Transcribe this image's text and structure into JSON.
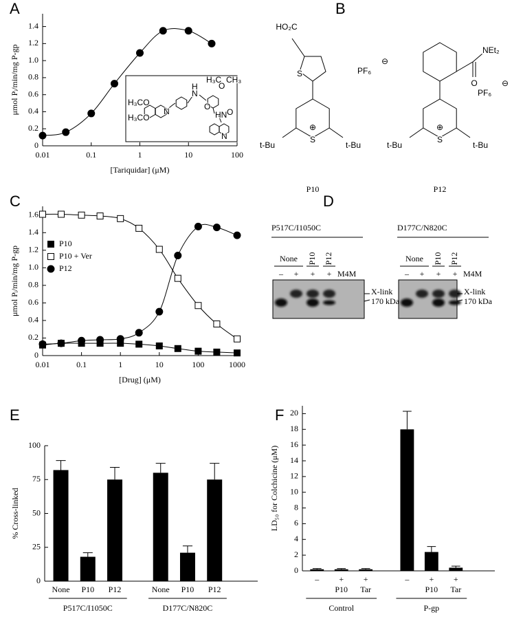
{
  "panel_labels": [
    "A",
    "B",
    "C",
    "D",
    "E",
    "F"
  ],
  "chart_data": [
    {
      "type": "line",
      "xlabel": "[Tariquidar]  (μM)",
      "ylabel": "μmol Pᵢ/min/mg P-gp",
      "x": [
        0.01,
        0.03,
        0.1,
        0.3,
        1,
        3,
        10,
        30
      ],
      "values": [
        0.12,
        0.16,
        0.38,
        0.73,
        1.09,
        1.35,
        1.35,
        1.2
      ],
      "color": "#000000",
      "marker": "circle",
      "xscale": "log",
      "xlim": [
        0.01,
        100
      ],
      "xticks": [
        0.01,
        0.1,
        1,
        10,
        100
      ],
      "ylim": [
        0,
        1.55
      ],
      "yticks": [
        0,
        0.2,
        0.4,
        0.6,
        0.8,
        {
          "value": 1,
          "label": "1.0"
        },
        1.2,
        1.4
      ]
    },
    {
      "type": "line",
      "xlabel": "[Drug]  (μM)",
      "ylabel": "μmol Pᵢ/min/mg P-gp",
      "x": [
        0.01,
        0.03,
        0.1,
        0.3,
        1,
        3,
        10,
        30,
        100,
        300,
        1000
      ],
      "series": [
        {
          "name": "P10",
          "color": "#000000",
          "marker": "square",
          "values": [
            0.12,
            0.14,
            0.14,
            0.14,
            0.14,
            0.13,
            0.11,
            0.08,
            0.05,
            0.04,
            0.03
          ]
        },
        {
          "name": "P10 + Ver",
          "color": "#000000",
          "marker": "open-square",
          "values": [
            1.61,
            1.61,
            1.6,
            1.59,
            1.56,
            1.45,
            1.21,
            0.88,
            0.57,
            0.36,
            0.19
          ]
        },
        {
          "name": "P12",
          "color": "#000000",
          "marker": "circle",
          "values": [
            0.13,
            0.14,
            0.17,
            0.18,
            0.19,
            0.26,
            0.5,
            1.14,
            1.47,
            1.46,
            1.37
          ]
        }
      ],
      "xscale": "log",
      "xlim": [
        0.01,
        1000
      ],
      "xticks": [
        0.01,
        0.1,
        1,
        10,
        100,
        1000
      ],
      "ylim": [
        0,
        1.7
      ],
      "yticks": [
        0,
        0.2,
        0.4,
        0.6,
        0.8,
        {
          "value": 1,
          "label": "1.0"
        },
        1.2,
        1.4,
        1.6
      ],
      "legend": "upper left"
    },
    {
      "type": "bar",
      "ylabel": "% Cross-linked",
      "categories": [
        "None",
        "P10",
        "P12",
        "None",
        "P10",
        "P12"
      ],
      "groups": [
        "P517C/I1050C",
        "D177C/N820C"
      ],
      "values": [
        82,
        18,
        75,
        80,
        21,
        75
      ],
      "errors": [
        7,
        3,
        9,
        7,
        5,
        12
      ],
      "color": "#000000",
      "ylim": [
        0,
        100
      ],
      "yticks": [
        0,
        25,
        50,
        75,
        100
      ]
    },
    {
      "type": "bar",
      "ylabel": "LD₅₀ for Colchicine (μM)",
      "categories": [
        "–",
        "+",
        "+",
        "–",
        "+",
        "+"
      ],
      "sublabels": [
        null,
        "P10",
        "Tar",
        null,
        "P10",
        "Tar"
      ],
      "groups": [
        "Control",
        "P-gp"
      ],
      "values": [
        0.2,
        0.2,
        0.2,
        18,
        2.4,
        0.4
      ],
      "errors": [
        0.1,
        0.1,
        0.1,
        2.3,
        0.7,
        0.2
      ],
      "color": "#000000",
      "ylim": [
        0,
        21
      ],
      "yticks": [
        0,
        2,
        4,
        6,
        8,
        10,
        12,
        14,
        16,
        18,
        20
      ]
    }
  ],
  "inset": {
    "labels": [
      "H₃CO",
      "H₃CO",
      "N",
      "H",
      "N",
      "O",
      "H₃C",
      "O",
      "CH₃",
      "HN",
      "O",
      "N"
    ]
  },
  "structures": [
    {
      "name": "P10",
      "substituent": "HO₂C",
      "substituent_s": "S",
      "counterion": "PF₆",
      "anion": "⊖",
      "tbu_left": "t-Bu",
      "ring_s": "S",
      "cation": "⊕",
      "tbu_right": "t-Bu"
    },
    {
      "name": "P12",
      "substituent": "NEt₂",
      "substituent_s": "O",
      "counterion": "PF₆",
      "anion": "⊖",
      "tbu_left": "t-Bu",
      "ring_s": "S",
      "cation": "⊕",
      "tbu_right": "t-Bu"
    }
  ],
  "gels": [
    {
      "title": "P517C/I1050C",
      "lanes": [
        "None",
        "P10",
        "P12"
      ],
      "signs": [
        "–",
        "+",
        "+",
        "+"
      ],
      "reagent": "M4M",
      "markers": [
        "X-link",
        "170 kDa"
      ]
    },
    {
      "title": "D177C/N820C",
      "lanes": [
        "None",
        "P10",
        "P12"
      ],
      "signs": [
        "–",
        "+",
        "+",
        "+"
      ],
      "reagent": "M4M",
      "markers": [
        "X-link",
        "170 kDa"
      ]
    }
  ]
}
